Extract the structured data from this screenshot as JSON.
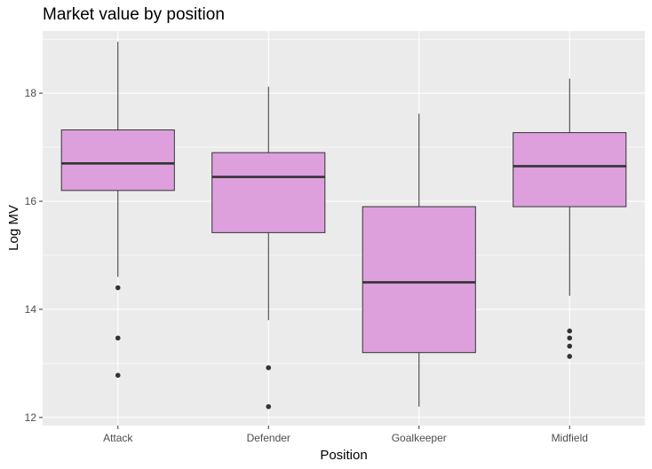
{
  "chart_data": {
    "type": "boxplot",
    "title": "Market value by position",
    "xlabel": "Position",
    "ylabel": "Log MV",
    "ylim": [
      11.85,
      19.15
    ],
    "yticks": [
      12,
      14,
      16,
      18
    ],
    "grid": true,
    "box_color": "#DDA0DD",
    "panel_color": "#EBEBEB",
    "categories": [
      "Attack",
      "Defender",
      "Goalkeeper",
      "Midfield"
    ],
    "boxes": [
      {
        "category": "Attack",
        "whisker_low": 14.6,
        "q1": 16.2,
        "median": 16.7,
        "q3": 17.32,
        "whisker_high": 18.95,
        "outliers": [
          14.4,
          13.47,
          12.78
        ]
      },
      {
        "category": "Defender",
        "whisker_low": 13.8,
        "q1": 15.42,
        "median": 16.45,
        "q3": 16.9,
        "whisker_high": 18.12,
        "outliers": [
          12.92,
          12.2
        ]
      },
      {
        "category": "Goalkeeper",
        "whisker_low": 12.2,
        "q1": 13.2,
        "median": 14.5,
        "q3": 15.9,
        "whisker_high": 17.62,
        "outliers": []
      },
      {
        "category": "Midfield",
        "whisker_low": 14.25,
        "q1": 15.9,
        "median": 16.65,
        "q3": 17.27,
        "whisker_high": 18.27,
        "outliers": [
          13.6,
          13.47,
          13.32,
          13.13
        ]
      }
    ]
  }
}
